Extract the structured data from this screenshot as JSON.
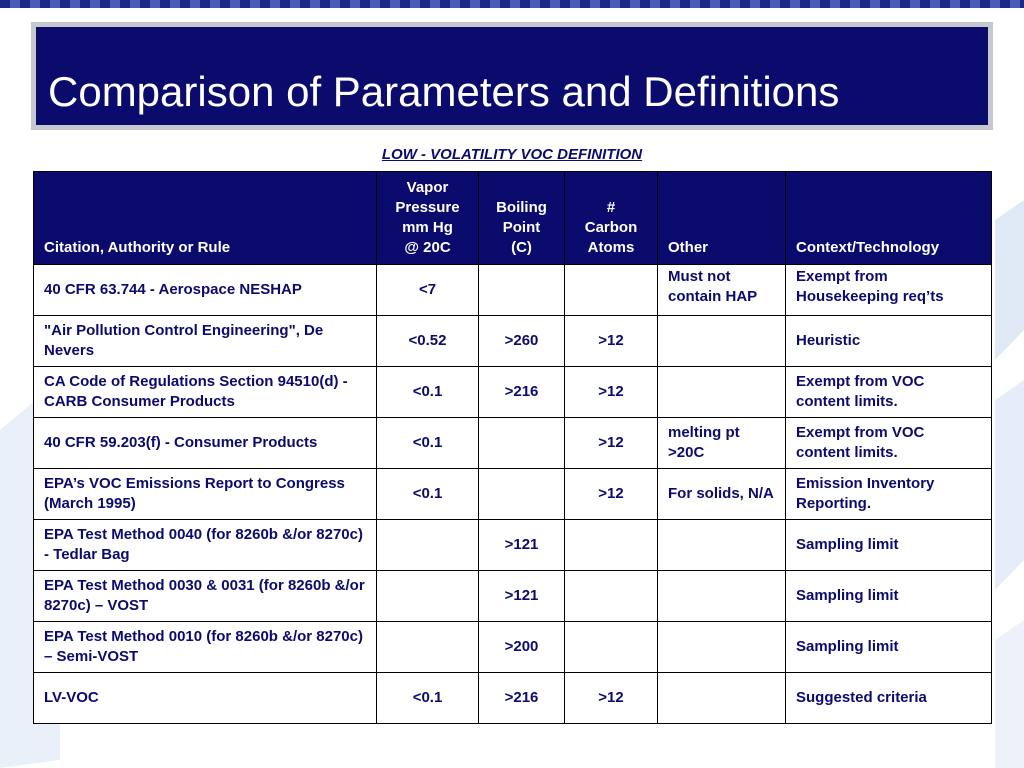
{
  "slide": {
    "title": "Comparison of Parameters and Definitions",
    "subtitle": "LOW - VOLATILITY VOC DEFINITION"
  },
  "table": {
    "headers": {
      "citation": "Citation, Authority or Rule",
      "vapor_line1": "Vapor",
      "vapor_line2": "Pressure",
      "vapor_line3": "mm Hg",
      "vapor_line4": "@ 20C",
      "boiling_line1": "Boiling",
      "boiling_line2": "Point",
      "boiling_line3": "(C)",
      "carbon_line1": "#",
      "carbon_line2": "Carbon",
      "carbon_line3": "Atoms",
      "other": "Other",
      "context": "Context/Technology"
    },
    "rows": [
      {
        "citation": "40 CFR 63.744 - Aerospace NESHAP",
        "vapor": "<7",
        "boiling": "",
        "carbon": "",
        "other": "Must not contain HAP",
        "context": "Exempt from Housekeeping req’ts"
      },
      {
        "citation": "\"Air Pollution Control Engineering\", De Nevers",
        "vapor": "<0.52",
        "boiling": ">260",
        "carbon": ">12",
        "other": "",
        "context": "Heuristic"
      },
      {
        "citation": "CA Code of Regulations Section 94510(d) - CARB Consumer Products",
        "vapor": "<0.1",
        "boiling": ">216",
        "carbon": ">12",
        "other": "",
        "context": "Exempt from VOC content limits."
      },
      {
        "citation": "40 CFR 59.203(f) - Consumer Products",
        "vapor": "<0.1",
        "boiling": "",
        "carbon": ">12",
        "other": "melting pt >20C",
        "context": "Exempt from VOC content limits."
      },
      {
        "citation": "EPA’s VOC Emissions Report to Congress (March 1995)",
        "vapor": "<0.1",
        "boiling": "",
        "carbon": ">12",
        "other": "For solids, N/A",
        "context": "Emission Inventory Reporting."
      },
      {
        "citation": "EPA Test Method 0040 (for 8260b &/or 8270c) - Tedlar Bag",
        "vapor": "",
        "boiling": ">121",
        "carbon": "",
        "other": "",
        "context": "Sampling limit"
      },
      {
        "citation": "EPA Test Method 0030 & 0031 (for 8260b &/or 8270c) – VOST",
        "vapor": "",
        "boiling": ">121",
        "carbon": "",
        "other": "",
        "context": "Sampling limit"
      },
      {
        "citation": "EPA Test Method 0010 (for 8260b &/or 8270c) – Semi-VOST",
        "vapor": "",
        "boiling": ">200",
        "carbon": "",
        "other": "",
        "context": "Sampling limit"
      },
      {
        "citation": "LV-VOC",
        "vapor": "<0.1",
        "boiling": ">216",
        "carbon": ">12",
        "other": "",
        "context": "Suggested criteria"
      }
    ]
  },
  "colors": {
    "navy": "#0b0b6e",
    "title_frame": "#c6c8cf",
    "highlight_row": "#d3d6f5"
  }
}
